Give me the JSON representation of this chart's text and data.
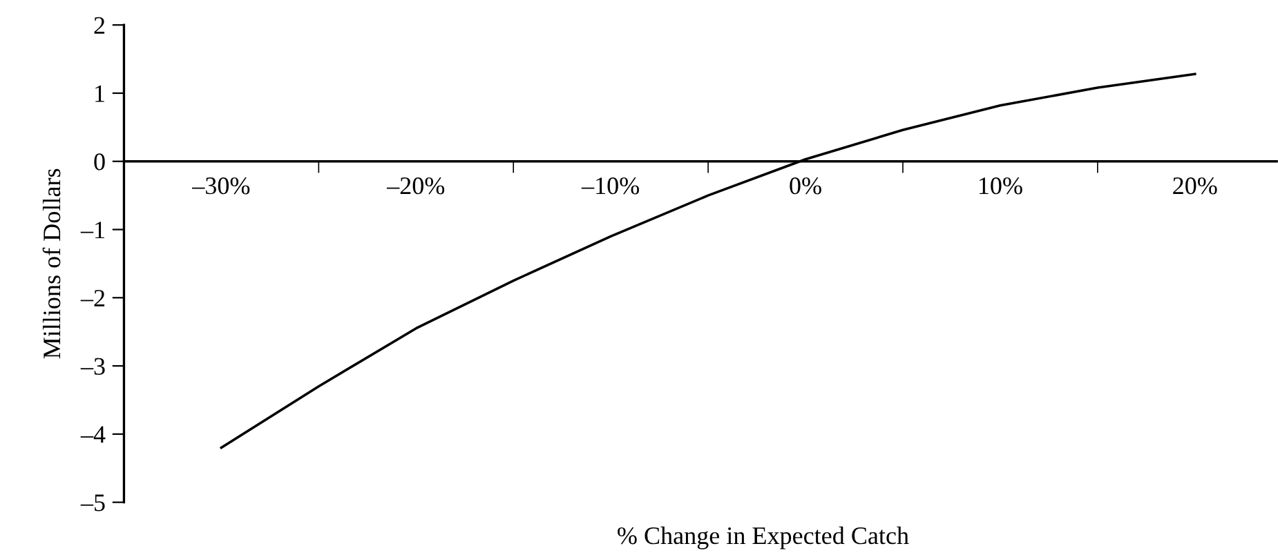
{
  "chart_data": {
    "type": "line",
    "xlabel": "% Change in Expected Catch",
    "ylabel": "Millions of Dollars",
    "x": [
      -30,
      -25,
      -20,
      -15,
      -10,
      -5,
      0,
      5,
      10,
      15,
      20
    ],
    "series": [
      {
        "color": "#000000",
        "values": [
          -4.2,
          -3.3,
          -2.45,
          -1.75,
          -1.1,
          -0.5,
          0.03,
          0.46,
          0.82,
          1.08,
          1.28
        ]
      }
    ],
    "xlim": [
      -35,
      24.2
    ],
    "xticks": [
      {
        "value": -30,
        "label": "–30%"
      },
      {
        "value": -25,
        "label": null
      },
      {
        "value": -20,
        "label": "–20%"
      },
      {
        "value": -15,
        "label": null
      },
      {
        "value": -10,
        "label": "–10%"
      },
      {
        "value": -5,
        "label": null
      },
      {
        "value": 0,
        "label": "0%"
      },
      {
        "value": 5,
        "label": null
      },
      {
        "value": 10,
        "label": "10%"
      },
      {
        "value": 15,
        "label": null
      },
      {
        "value": 20,
        "label": "20%"
      }
    ],
    "ylim": [
      -5,
      2
    ],
    "yticks": [
      {
        "value": -5,
        "label": "–5"
      },
      {
        "value": -4,
        "label": "–4"
      },
      {
        "value": -3,
        "label": "–3"
      },
      {
        "value": -2,
        "label": "–2"
      },
      {
        "value": -1,
        "label": "–1"
      },
      0,
      1,
      2
    ],
    "grid": false,
    "marker": "none",
    "line_style": "solid"
  }
}
